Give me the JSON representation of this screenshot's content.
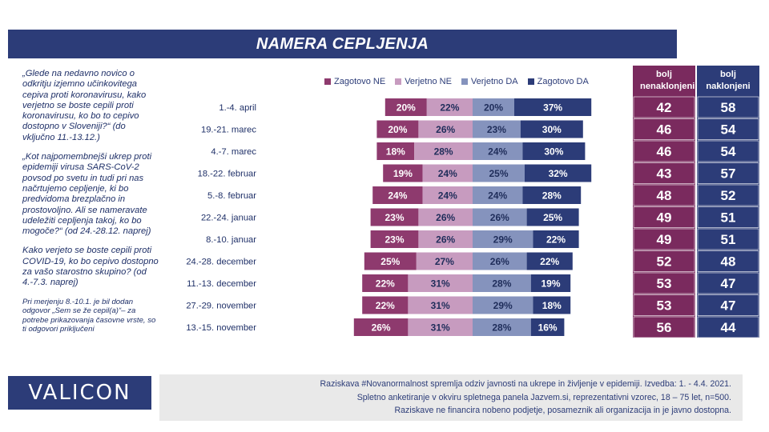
{
  "title": "NAMERA CEPLJENJA",
  "left_text": {
    "q1": "„Glede na nedavno novico o odkritju izjemno učinkovitega cepiva proti koronavirusu, kako verjetno se boste cepili proti koronavirusu, ko bo to cepivo dostopno v Sloveniji?“ (do vključno 11.-13.12.)",
    "q2": "„Kot najpomembnejši ukrep proti epidemiji virusa SARS-CoV-2 povsod po svetu in tudi pri nas načrtujemo cepljenje, ki bo predvidoma brezplačno in prostovoljno. Ali se nameravate udeležiti cepljenja takoj, ko bo mogoče?“ (od 24.-28.12. naprej)",
    "q3": "Kako verjeto se boste cepili proti COVID-19, ko bo cepivo dostopno za vašo starostno skupino? (od 4.-7.3. naprej)",
    "note": "Pri merjenju 8.-10.1. je bil dodan odgovor „Sem se že cepil(a)“– za potrebe prikazovanja časovne vrste, so ti odgovori priključeni"
  },
  "logo": "VALICON",
  "footer": {
    "line1": "Raziskava #Novanormalnost spremlja odziv javnosti na ukrepe in življenje v epidemiji. Izvedba: 1. - 4.4. 2021.",
    "line2": "Spletno anketiranje v okviru spletnega panela Jazvem.si, reprezentativni vzorec, 18 – 75 let, n=500.",
    "line3": "Raziskave ne financira nobeno podjetje, posameznik ali organizacija in je javno dostopna."
  },
  "colors": {
    "zagotovo_ne": "#8e3a6e",
    "verjetno_ne": "#c79bbf",
    "verjetno_da": "#8593bd",
    "zagotovo_da": "#2c3c78",
    "col_nenaklonjeni": "#7a2a5e",
    "col_naklonjeni": "#2c3c78",
    "title_bar": "#2c3c78"
  },
  "columns": {
    "nenaklonjeni": "bolj nenaklonjeni",
    "naklonjeni": "bolj naklonjeni"
  },
  "chart_data": {
    "type": "bar",
    "orientation": "horizontal-diverging-stacked",
    "categories": [
      "1.-4. april",
      "19.-21. marec",
      "4.-7. marec",
      "18.-22. februar",
      "5.-8. februar",
      "22.-24. januar",
      "8.-10. januar",
      "24.-28. december",
      "11.-13. december",
      "27.-29. november",
      "13.-15. november"
    ],
    "series": [
      {
        "name": "Zagotovo NE",
        "values": [
          20,
          20,
          18,
          19,
          24,
          23,
          23,
          25,
          22,
          22,
          26
        ]
      },
      {
        "name": "Verjetno NE",
        "values": [
          22,
          26,
          28,
          24,
          24,
          26,
          26,
          27,
          31,
          31,
          31
        ]
      },
      {
        "name": "Verjetno DA",
        "values": [
          20,
          23,
          24,
          25,
          24,
          26,
          29,
          26,
          28,
          29,
          28
        ]
      },
      {
        "name": "Zagotovo DA",
        "values": [
          37,
          30,
          30,
          32,
          28,
          25,
          22,
          22,
          19,
          18,
          16
        ]
      }
    ],
    "bolj_nenaklonjeni": [
      42,
      46,
      46,
      43,
      48,
      49,
      49,
      52,
      53,
      53,
      56
    ],
    "bolj_naklonjeni": [
      58,
      54,
      54,
      57,
      52,
      51,
      51,
      48,
      47,
      47,
      44
    ],
    "value_suffix": "%",
    "legend_position": "top"
  }
}
